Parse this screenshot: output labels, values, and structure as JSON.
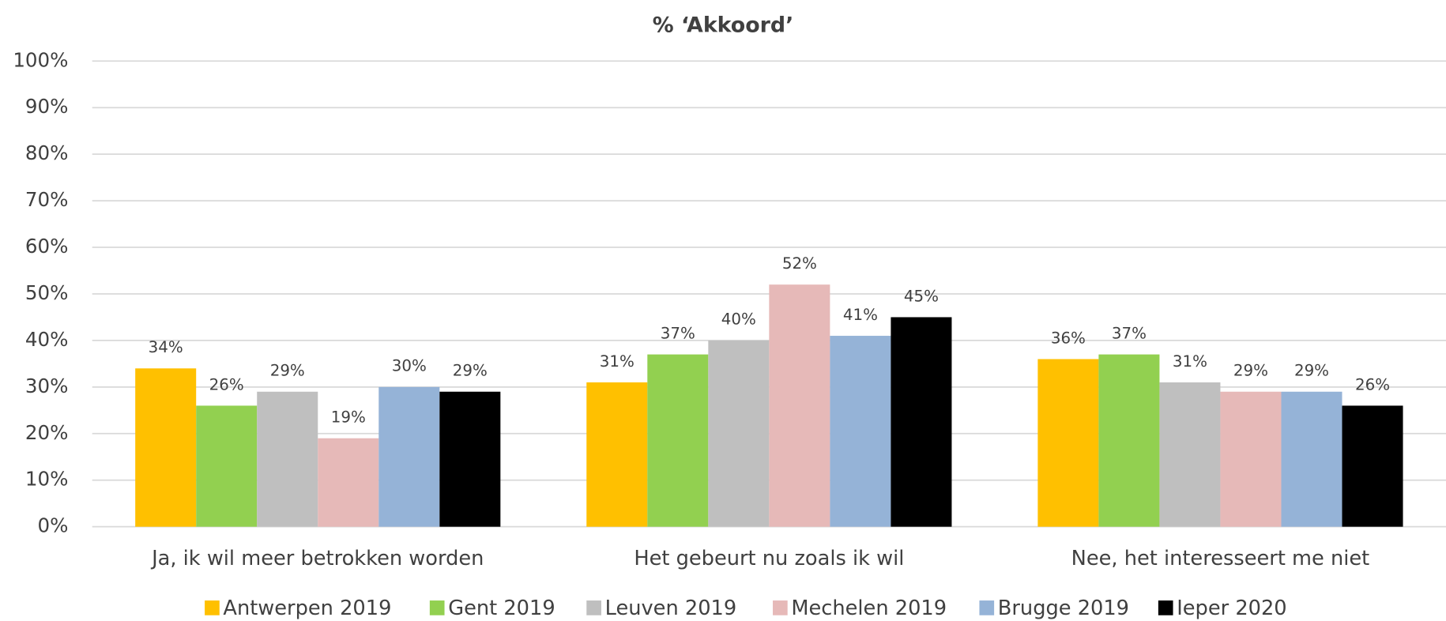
{
  "chart_data": {
    "type": "bar",
    "title": "% ‘Akkoord’",
    "categories": [
      "Ja, ik wil meer betrokken worden",
      "Het gebeurt nu zoals ik wil",
      "Nee, het interesseert me niet"
    ],
    "series": [
      {
        "name": "Antwerpen 2019",
        "color": "#ffc000",
        "values": [
          34,
          31,
          36
        ],
        "value_labels": [
          "34%",
          "31%",
          "36%"
        ]
      },
      {
        "name": "Gent 2019",
        "color": "#92d050",
        "values": [
          26,
          37,
          37
        ],
        "value_labels": [
          "26%",
          "37%",
          "37%"
        ]
      },
      {
        "name": "Leuven 2019",
        "color": "#bfbfbf",
        "values": [
          29,
          40,
          31
        ],
        "value_labels": [
          "29%",
          "40%",
          "31%"
        ]
      },
      {
        "name": "Mechelen 2019",
        "color": "#e6b9b8",
        "values": [
          19,
          52,
          29
        ],
        "value_labels": [
          "19%",
          "52%",
          "29%"
        ]
      },
      {
        "name": "Brugge 2019",
        "color": "#95b3d7",
        "values": [
          30,
          41,
          29
        ],
        "value_labels": [
          "30%",
          "41%",
          "29%"
        ]
      },
      {
        "name": "Ieper 2020",
        "color": "#000000",
        "values": [
          29,
          45,
          26
        ],
        "value_labels": [
          "29%",
          "45%",
          "26%"
        ]
      }
    ],
    "ylim": [
      0,
      100
    ],
    "yticks": [
      {
        "value": 0,
        "label": "0%"
      },
      {
        "value": 10,
        "label": "10%"
      },
      {
        "value": 20,
        "label": "20%"
      },
      {
        "value": 30,
        "label": "30%"
      },
      {
        "value": 40,
        "label": "40%"
      },
      {
        "value": 50,
        "label": "50%"
      },
      {
        "value": 60,
        "label": "60%"
      },
      {
        "value": 70,
        "label": "70%"
      },
      {
        "value": 80,
        "label": "80%"
      },
      {
        "value": 90,
        "label": "90%"
      },
      {
        "value": 100,
        "label": "100%"
      }
    ],
    "grid": true,
    "legend": "bottom"
  }
}
